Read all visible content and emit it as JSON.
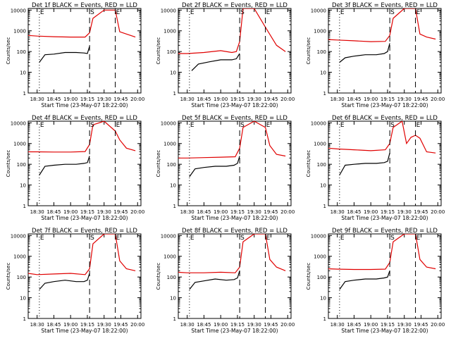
{
  "figure": {
    "xlabel": "Start Time (23-May-07 18:22:00)",
    "ylabel": "Counts/sec",
    "colors": {
      "events": "#000000",
      "lld": "#e00000",
      "axes": "#000000"
    }
  },
  "chart_data": [
    {
      "type": "line",
      "title": "Det 1f BLACK = Events, RED = LLD",
      "xlabel": "Start Time (23-May-07 18:22:00)",
      "ylabel": "Counts/sec",
      "x_ticks": [
        "18:30",
        "18:45",
        "19:00",
        "19:15",
        "19:30",
        "19:45",
        "20:00"
      ],
      "y_ticks": [
        "1",
        "10",
        "100",
        "1000",
        "10000"
      ],
      "y_scale": "log",
      "ylim": [
        1,
        12000
      ],
      "markers": [
        "E",
        "S",
        "E"
      ],
      "series": [
        {
          "name": "Events",
          "color": "black",
          "x": [
            "18:32",
            "18:37",
            "18:45",
            "18:55",
            "19:05",
            "19:12",
            "19:15",
            "19:17"
          ],
          "y": [
            30,
            70,
            75,
            90,
            90,
            85,
            80,
            180
          ]
        },
        {
          "name": "LLD",
          "color": "red",
          "x": [
            "18:22",
            "18:30",
            "18:45",
            "19:00",
            "19:13",
            "19:17",
            "19:20",
            "19:30",
            "19:40",
            "19:44",
            "19:50",
            "19:58"
          ],
          "y": [
            600,
            560,
            520,
            500,
            500,
            800,
            4000,
            10000,
            10000,
            900,
            700,
            500
          ]
        }
      ]
    },
    {
      "type": "line",
      "title": "Det 2f BLACK = Events, RED = LLD",
      "xlabel": "Start Time (23-May-07 18:22:00)",
      "ylabel": "Counts/sec",
      "x_ticks": [
        "18:30",
        "18:45",
        "19:00",
        "19:15",
        "19:30",
        "19:45",
        "20:00"
      ],
      "y_ticks": [
        "1",
        "10",
        "100",
        "1000",
        "10000"
      ],
      "y_scale": "log",
      "ylim": [
        1,
        12000
      ],
      "markers": [
        "E",
        "S",
        "E"
      ],
      "series": [
        {
          "name": "Events",
          "color": "black",
          "x": [
            "18:34",
            "18:40",
            "18:50",
            "19:00",
            "19:10",
            "19:14",
            "19:17"
          ],
          "y": [
            12,
            25,
            32,
            40,
            40,
            45,
            80
          ]
        },
        {
          "name": "LLD",
          "color": "red",
          "x": [
            "18:22",
            "18:30",
            "18:45",
            "19:00",
            "19:10",
            "19:14",
            "19:17",
            "19:20",
            "19:30",
            "19:40",
            "19:50",
            "19:58"
          ],
          "y": [
            80,
            80,
            90,
            110,
            90,
            100,
            300,
            12000,
            12000,
            1500,
            200,
            100
          ]
        }
      ]
    },
    {
      "type": "line",
      "title": "Det 3f BLACK = Events, RED = LLD",
      "xlabel": "Start Time (23-May-07 18:22:00)",
      "ylabel": "Counts/sec",
      "x_ticks": [
        "18:30",
        "18:45",
        "19:00",
        "19:15",
        "19:30",
        "19:45",
        "20:00"
      ],
      "y_ticks": [
        "1",
        "10",
        "100",
        "1000",
        "10000"
      ],
      "y_scale": "log",
      "ylim": [
        1,
        12000
      ],
      "markers": [
        "E",
        "S",
        "E"
      ],
      "series": [
        {
          "name": "Events",
          "color": "black",
          "x": [
            "18:32",
            "18:37",
            "18:45",
            "18:55",
            "19:05",
            "19:12",
            "19:15",
            "19:17"
          ],
          "y": [
            30,
            50,
            60,
            70,
            70,
            80,
            100,
            250
          ]
        },
        {
          "name": "LLD",
          "color": "red",
          "x": [
            "18:22",
            "18:30",
            "18:45",
            "19:00",
            "19:13",
            "19:17",
            "19:20",
            "19:30",
            "19:40",
            "19:44",
            "19:50",
            "19:58"
          ],
          "y": [
            380,
            360,
            330,
            300,
            310,
            600,
            4000,
            12000,
            12000,
            700,
            500,
            400
          ]
        }
      ]
    },
    {
      "type": "line",
      "title": "Det 4f BLACK = Events, RED = LLD",
      "xlabel": "Start Time (23-May-07 18:22:00)",
      "ylabel": "Counts/sec",
      "x_ticks": [
        "18:30",
        "18:45",
        "19:00",
        "19:15",
        "19:30",
        "19:45",
        "20:00"
      ],
      "y_ticks": [
        "1",
        "10",
        "100",
        "1000",
        "10000"
      ],
      "y_scale": "log",
      "ylim": [
        1,
        12000
      ],
      "markers": [
        "E",
        "S",
        "E"
      ],
      "series": [
        {
          "name": "Events",
          "color": "black",
          "x": [
            "18:32",
            "18:37",
            "18:45",
            "18:55",
            "19:05",
            "19:12",
            "19:15",
            "19:17"
          ],
          "y": [
            30,
            80,
            90,
            100,
            100,
            110,
            120,
            250
          ]
        },
        {
          "name": "LLD",
          "color": "red",
          "x": [
            "18:22",
            "18:30",
            "18:45",
            "19:00",
            "19:13",
            "19:17",
            "19:20",
            "19:30",
            "19:40",
            "19:44",
            "19:50",
            "19:58"
          ],
          "y": [
            400,
            400,
            390,
            390,
            410,
            900,
            8000,
            12000,
            4000,
            1500,
            600,
            450
          ]
        }
      ]
    },
    {
      "type": "line",
      "title": "Det 5f BLACK = Events, RED = LLD",
      "xlabel": "Start Time (23-May-07 18:22:00)",
      "ylabel": "Counts/sec",
      "x_ticks": [
        "18:30",
        "18:45",
        "19:00",
        "19:15",
        "19:30",
        "19:45",
        "20:00"
      ],
      "y_ticks": [
        "1",
        "10",
        "100",
        "1000",
        "10000"
      ],
      "y_scale": "log",
      "ylim": [
        1,
        12000
      ],
      "markers": [
        "E",
        "S",
        "E"
      ],
      "series": [
        {
          "name": "Events",
          "color": "black",
          "x": [
            "18:32",
            "18:37",
            "18:45",
            "18:55",
            "19:05",
            "19:12",
            "19:15",
            "19:17"
          ],
          "y": [
            25,
            60,
            70,
            80,
            80,
            90,
            110,
            250
          ]
        },
        {
          "name": "LLD",
          "color": "red",
          "x": [
            "18:22",
            "18:30",
            "18:45",
            "19:00",
            "19:13",
            "19:17",
            "19:20",
            "19:30",
            "19:40",
            "19:44",
            "19:50",
            "19:58"
          ],
          "y": [
            200,
            200,
            210,
            220,
            230,
            600,
            6000,
            12000,
            6000,
            800,
            300,
            250
          ]
        }
      ]
    },
    {
      "type": "line",
      "title": "Det 6f BLACK = Events, RED = LLD",
      "xlabel": "Start Time (23-May-07 18:22:00)",
      "ylabel": "Counts/sec",
      "x_ticks": [
        "18:30",
        "18:45",
        "19:00",
        "19:15",
        "19:30",
        "19:45",
        "20:00"
      ],
      "y_ticks": [
        "1",
        "10",
        "100",
        "1000",
        "10000"
      ],
      "y_scale": "log",
      "ylim": [
        1,
        12000
      ],
      "markers": [
        "E",
        "S",
        "E"
      ],
      "series": [
        {
          "name": "Events",
          "color": "black",
          "x": [
            "18:32",
            "18:37",
            "18:45",
            "18:55",
            "19:05",
            "19:12",
            "19:15",
            "19:17"
          ],
          "y": [
            30,
            90,
            100,
            110,
            110,
            120,
            140,
            350
          ]
        },
        {
          "name": "LLD",
          "color": "red",
          "x": [
            "18:22",
            "18:30",
            "18:45",
            "19:00",
            "19:13",
            "19:17",
            "19:20",
            "19:28",
            "19:32",
            "19:36",
            "19:40",
            "19:44",
            "19:50",
            "19:58"
          ],
          "y": [
            600,
            550,
            500,
            450,
            500,
            1000,
            6000,
            12000,
            1000,
            2000,
            2500,
            1800,
            400,
            350
          ]
        }
      ]
    },
    {
      "type": "line",
      "title": "Det 7f BLACK = Events, RED = LLD",
      "xlabel": "Start Time (23-May-07 18:22:00)",
      "ylabel": "Counts/sec",
      "x_ticks": [
        "18:30",
        "18:45",
        "19:00",
        "19:15",
        "19:30",
        "19:45",
        "20:00"
      ],
      "y_ticks": [
        "1",
        "10",
        "100",
        "1000",
        "10000"
      ],
      "y_scale": "log",
      "ylim": [
        1,
        12000
      ],
      "markers": [
        "E",
        "S",
        "E"
      ],
      "series": [
        {
          "name": "Events",
          "color": "black",
          "x": [
            "18:32",
            "18:37",
            "18:45",
            "18:55",
            "19:05",
            "19:12",
            "19:15",
            "19:17"
          ],
          "y": [
            25,
            50,
            60,
            70,
            60,
            60,
            70,
            150
          ]
        },
        {
          "name": "LLD",
          "color": "red",
          "x": [
            "18:22",
            "18:30",
            "18:45",
            "19:00",
            "19:13",
            "19:17",
            "19:20",
            "19:30",
            "19:40",
            "19:44",
            "19:50",
            "19:58"
          ],
          "y": [
            150,
            130,
            140,
            150,
            130,
            250,
            4000,
            12000,
            12000,
            600,
            250,
            200
          ]
        }
      ]
    },
    {
      "type": "line",
      "title": "Det 8f BLACK = Events, RED = LLD",
      "xlabel": "Start Time (23-May-07 18:22:00)",
      "ylabel": "Counts/sec",
      "x_ticks": [
        "18:30",
        "18:45",
        "19:00",
        "19:15",
        "19:30",
        "19:45",
        "20:00"
      ],
      "y_ticks": [
        "1",
        "10",
        "100",
        "1000",
        "10000"
      ],
      "y_scale": "log",
      "ylim": [
        1,
        12000
      ],
      "markers": [
        "E",
        "S",
        "E"
      ],
      "series": [
        {
          "name": "Events",
          "color": "black",
          "x": [
            "18:32",
            "18:37",
            "18:45",
            "18:55",
            "19:05",
            "19:12",
            "19:15",
            "19:17"
          ],
          "y": [
            25,
            55,
            65,
            80,
            70,
            75,
            90,
            200
          ]
        },
        {
          "name": "LLD",
          "color": "red",
          "x": [
            "18:22",
            "18:30",
            "18:45",
            "19:00",
            "19:13",
            "19:17",
            "19:20",
            "19:30",
            "19:40",
            "19:44",
            "19:50",
            "19:58"
          ],
          "y": [
            170,
            160,
            160,
            170,
            160,
            300,
            5000,
            12000,
            12000,
            700,
            300,
            200
          ]
        }
      ]
    },
    {
      "type": "line",
      "title": "Det 9f BLACK = Events, RED = LLD",
      "xlabel": "Start Time (23-May-07 18:22:00)",
      "ylabel": "Counts/sec",
      "x_ticks": [
        "18:30",
        "18:45",
        "19:00",
        "19:15",
        "19:30",
        "19:45",
        "20:00"
      ],
      "y_ticks": [
        "1",
        "10",
        "100",
        "1000",
        "10000"
      ],
      "y_scale": "log",
      "ylim": [
        1,
        12000
      ],
      "markers": [
        "E",
        "S",
        "E"
      ],
      "series": [
        {
          "name": "Events",
          "color": "black",
          "x": [
            "18:32",
            "18:37",
            "18:45",
            "18:55",
            "19:05",
            "19:12",
            "19:15",
            "19:17"
          ],
          "y": [
            25,
            60,
            70,
            80,
            80,
            90,
            100,
            200
          ]
        },
        {
          "name": "LLD",
          "color": "red",
          "x": [
            "18:22",
            "18:30",
            "18:45",
            "19:00",
            "19:13",
            "19:17",
            "19:20",
            "19:30",
            "19:40",
            "19:44",
            "19:50",
            "19:58"
          ],
          "y": [
            250,
            240,
            230,
            230,
            240,
            500,
            5000,
            12000,
            12000,
            700,
            300,
            250
          ]
        }
      ]
    }
  ]
}
